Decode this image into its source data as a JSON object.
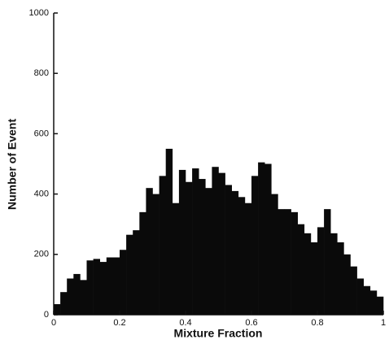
{
  "chart_data": {
    "type": "histogram",
    "x_label": "Mixture Fraction",
    "y_label": "Number of Event",
    "bins": [
      0,
      0.02,
      0.04,
      0.06,
      0.08,
      0.1,
      0.12,
      0.14,
      0.16,
      0.18,
      0.2,
      0.22,
      0.24,
      0.26,
      0.28,
      0.3,
      0.32,
      0.34,
      0.36,
      0.38,
      0.4,
      0.42,
      0.44,
      0.46,
      0.48,
      0.5,
      0.52,
      0.54,
      0.56,
      0.58,
      0.6,
      0.62,
      0.64,
      0.66,
      0.68,
      0.7,
      0.72,
      0.74,
      0.76,
      0.78,
      0.8,
      0.82,
      0.84,
      0.86,
      0.88,
      0.9,
      0.92,
      0.94,
      0.96,
      0.98,
      1
    ],
    "counts": [
      35,
      75,
      120,
      135,
      115,
      180,
      185,
      175,
      190,
      190,
      215,
      265,
      280,
      340,
      420,
      400,
      460,
      550,
      370,
      480,
      440,
      485,
      450,
      420,
      490,
      470,
      430,
      410,
      390,
      370,
      460,
      505,
      500,
      400,
      350,
      350,
      340,
      300,
      270,
      240,
      290,
      350,
      270,
      240,
      200,
      160,
      120,
      95,
      80,
      60
    ],
    "color": "#0a0a0a",
    "xlim": [
      0,
      1
    ],
    "xticks": [
      0,
      0.2,
      0.4,
      0.6,
      0.8,
      1
    ],
    "ylim": [
      0,
      1000
    ],
    "yticks": [
      0,
      200,
      400,
      600,
      800,
      1000
    ]
  }
}
